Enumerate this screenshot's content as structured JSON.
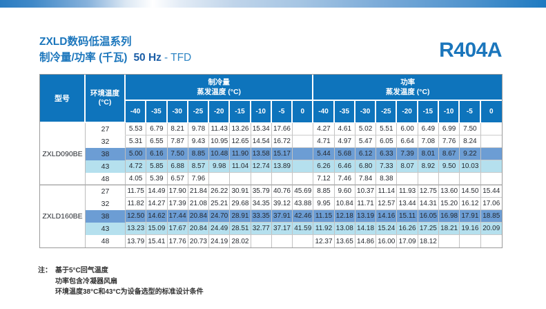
{
  "page": {
    "series_title": "ZXLD数码低温系列",
    "subtitle": "制冷量/功率 (千瓦)",
    "frequency": "50 Hz",
    "frequency_suffix": "- TFD",
    "refrigerant": "R404A"
  },
  "table": {
    "model_header": "型号",
    "ambient_header": "环境温度\n(°C)",
    "cooling_group_header": "制冷量\n蒸发温度 (°C)",
    "power_group_header": "功率\n蒸发温度 (°C)",
    "evap_temps": [
      "-40",
      "-35",
      "-30",
      "-25",
      "-20",
      "-15",
      "-10",
      "-5",
      "0"
    ],
    "models": [
      {
        "name": "ZXLD090BE",
        "rows": [
          {
            "ambient": "27",
            "highlight": "none",
            "cooling": [
              "5.53",
              "6.79",
              "8.21",
              "9.78",
              "11.43",
              "13.26",
              "15.34",
              "17.66",
              ""
            ],
            "power": [
              "4.27",
              "4.61",
              "5.02",
              "5.51",
              "6.00",
              "6.49",
              "6.99",
              "7.50",
              ""
            ]
          },
          {
            "ambient": "32",
            "highlight": "none",
            "cooling": [
              "5.31",
              "6.55",
              "7.87",
              "9.43",
              "10.95",
              "12.65",
              "14.54",
              "16.72",
              ""
            ],
            "power": [
              "4.71",
              "4.97",
              "5.47",
              "6.05",
              "6.64",
              "7.08",
              "7.76",
              "8.24",
              ""
            ]
          },
          {
            "ambient": "38",
            "highlight": "blue",
            "cooling": [
              "5.00",
              "6.16",
              "7.50",
              "8.85",
              "10.48",
              "11.90",
              "13.58",
              "15.17",
              ""
            ],
            "power": [
              "5.44",
              "5.68",
              "6.12",
              "6.33",
              "7.39",
              "8.01",
              "8.67",
              "9.22",
              ""
            ]
          },
          {
            "ambient": "43",
            "highlight": "cyan",
            "cooling": [
              "4.72",
              "5.85",
              "6.88",
              "8.57",
              "9.98",
              "11.04",
              "12.74",
              "13.89",
              ""
            ],
            "power": [
              "6.26",
              "6.46",
              "6.80",
              "7.33",
              "8.07",
              "8.92",
              "9.50",
              "10.03",
              ""
            ]
          },
          {
            "ambient": "48",
            "highlight": "none",
            "cooling": [
              "4.05",
              "5.39",
              "6.57",
              "7.96",
              "",
              "",
              "",
              "",
              ""
            ],
            "power": [
              "7.12",
              "7.46",
              "7.84",
              "8.38",
              "",
              "",
              "",
              "",
              ""
            ]
          }
        ]
      },
      {
        "name": "ZXLD160BE",
        "rows": [
          {
            "ambient": "27",
            "highlight": "none",
            "cooling": [
              "11.75",
              "14.49",
              "17.90",
              "21.84",
              "26.22",
              "30.91",
              "35.79",
              "40.76",
              "45.69"
            ],
            "power": [
              "8.85",
              "9.60",
              "10.37",
              "11.14",
              "11.93",
              "12.75",
              "13.60",
              "14.50",
              "15.44"
            ]
          },
          {
            "ambient": "32",
            "highlight": "none",
            "cooling": [
              "11.82",
              "14.27",
              "17.39",
              "21.08",
              "25.21",
              "29.68",
              "34.35",
              "39.12",
              "43.88"
            ],
            "power": [
              "9.95",
              "10.84",
              "11.71",
              "12.57",
              "13.44",
              "14.31",
              "15.20",
              "16.12",
              "17.06"
            ]
          },
          {
            "ambient": "38",
            "highlight": "blue",
            "cooling": [
              "12.50",
              "14.62",
              "17.44",
              "20.84",
              "24.70",
              "28.91",
              "33.35",
              "37.91",
              "42.46"
            ],
            "power": [
              "11.15",
              "12.18",
              "13.19",
              "14.16",
              "15.11",
              "16.05",
              "16.98",
              "17.91",
              "18.85"
            ]
          },
          {
            "ambient": "43",
            "highlight": "cyan",
            "cooling": [
              "13.23",
              "15.09",
              "17.67",
              "20.84",
              "24.49",
              "28.51",
              "32.77",
              "37.17",
              "41.59"
            ],
            "power": [
              "11.92",
              "13.08",
              "14.18",
              "15.24",
              "16.26",
              "17.25",
              "18.21",
              "19.16",
              "20.09"
            ]
          },
          {
            "ambient": "48",
            "highlight": "none",
            "cooling": [
              "13.79",
              "15.41",
              "17.76",
              "20.73",
              "24.19",
              "28.02",
              "",
              "",
              ""
            ],
            "power": [
              "12.37",
              "13.65",
              "14.86",
              "16.00",
              "17.09",
              "18.12",
              "",
              "",
              ""
            ]
          }
        ]
      }
    ]
  },
  "notes": {
    "label": "注：",
    "lines": [
      "基于5°C回气温度",
      "功率包含冷凝器风扇",
      "环境温度38°C和43°C为设备选型的标准设计条件"
    ]
  },
  "colors": {
    "header_blue": "#0E74BC",
    "highlight_blue": "#6C9DD4",
    "highlight_cyan": "#B5E0EE",
    "title_blue": "#1B76BC"
  }
}
